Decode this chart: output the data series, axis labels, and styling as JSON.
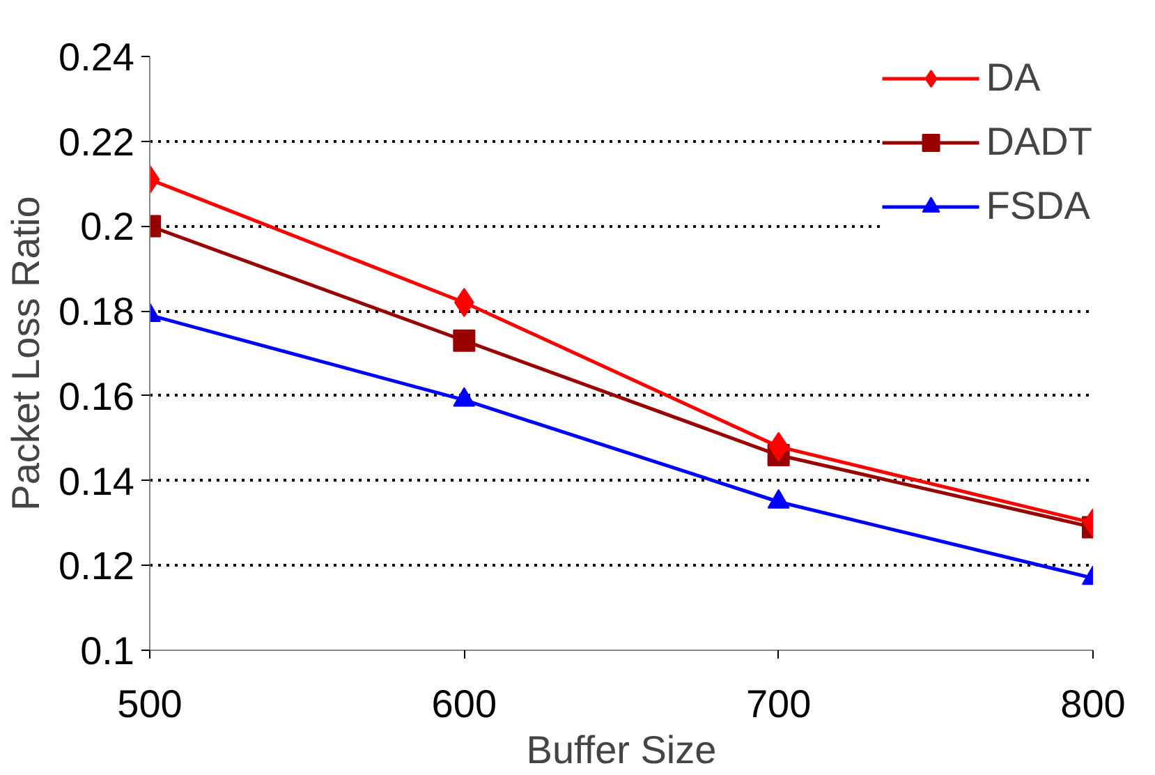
{
  "chart_data": {
    "type": "line",
    "xlabel": "Buffer Size",
    "ylabel": "Packet Loss Ratio",
    "x": [
      500,
      600,
      700,
      800
    ],
    "series": [
      {
        "name": "DA",
        "color": "#ff0000",
        "marker": "diamond",
        "values": [
          0.211,
          0.182,
          0.148,
          0.13
        ]
      },
      {
        "name": "DADT",
        "color": "#990000",
        "marker": "square",
        "values": [
          0.2,
          0.173,
          0.146,
          0.129
        ]
      },
      {
        "name": "FSDA",
        "color": "#0000ff",
        "marker": "triangle",
        "values": [
          0.179,
          0.159,
          0.135,
          0.117
        ]
      }
    ],
    "xlim": [
      500,
      800
    ],
    "xticks": [
      500,
      600,
      700,
      800
    ],
    "ylim": [
      0.1,
      0.24
    ],
    "yticks": [
      {
        "value": 0.1,
        "label": "0.1"
      },
      {
        "value": 0.12,
        "label": "0.12"
      },
      {
        "value": 0.14,
        "label": "0.14"
      },
      {
        "value": 0.16,
        "label": "0.16"
      },
      {
        "value": 0.18,
        "label": "0.18"
      },
      {
        "value": 0.2,
        "label": "0.2"
      },
      {
        "value": 0.22,
        "label": "0.22"
      },
      {
        "value": 0.24,
        "label": "0.24"
      }
    ],
    "grid": "y",
    "legend": "top right",
    "line_style": "solid"
  }
}
